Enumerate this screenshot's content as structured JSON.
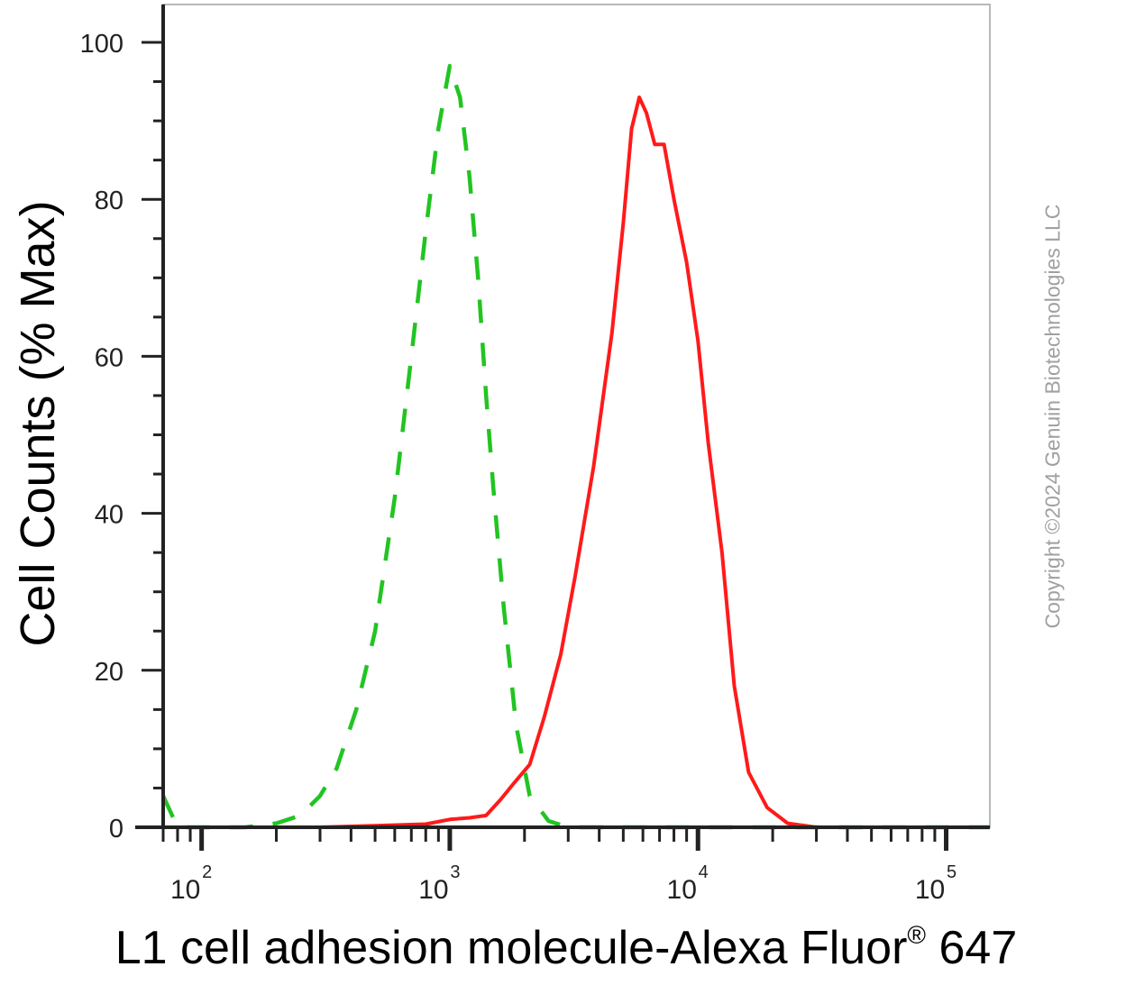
{
  "chart_data": {
    "type": "line",
    "title": "",
    "xlabel_main": "L1 cell adhesion molecule-Alexa Fluor",
    "xlabel_sup": "®",
    "xlabel_tail": " 647",
    "ylabel": "Cell Counts (% Max)",
    "x_scale": "log",
    "xlim": [
      70,
      150000
    ],
    "ylim": [
      0,
      100
    ],
    "y_ticks": [
      0,
      20,
      40,
      60,
      80,
      100
    ],
    "y_tick_labels": [
      "0",
      "20",
      "40",
      "60",
      "80",
      "100"
    ],
    "x_ticks": [
      100,
      1000,
      10000,
      100000
    ],
    "x_tick_bases": [
      "10",
      "10",
      "10",
      "10"
    ],
    "x_tick_exps": [
      "2",
      "3",
      "4",
      "5"
    ],
    "grid": false,
    "legend": "none",
    "series": [
      {
        "color": "#ff1a1a",
        "style": "solid",
        "points": [
          [
            70,
            0
          ],
          [
            300,
            0
          ],
          [
            500,
            0.2
          ],
          [
            800,
            0.4
          ],
          [
            1000,
            1
          ],
          [
            1200,
            1.2
          ],
          [
            1400,
            1.5
          ],
          [
            1600,
            3.5
          ],
          [
            1800,
            5.5
          ],
          [
            2100,
            8
          ],
          [
            2400,
            14
          ],
          [
            2800,
            22
          ],
          [
            3200,
            32
          ],
          [
            3800,
            46
          ],
          [
            4500,
            63
          ],
          [
            5000,
            77
          ],
          [
            5400,
            89
          ],
          [
            5800,
            93
          ],
          [
            6200,
            91
          ],
          [
            6700,
            87
          ],
          [
            7300,
            87
          ],
          [
            8000,
            80
          ],
          [
            9000,
            72
          ],
          [
            10000,
            62
          ],
          [
            11000,
            49
          ],
          [
            12500,
            35
          ],
          [
            14000,
            18
          ],
          [
            16000,
            7
          ],
          [
            19000,
            2.5
          ],
          [
            23000,
            0.5
          ],
          [
            30000,
            0
          ],
          [
            150000,
            0
          ]
        ]
      },
      {
        "color": "#22c422",
        "style": "dashed",
        "points": [
          [
            70,
            4
          ],
          [
            80,
            0
          ],
          [
            150,
            0
          ],
          [
            200,
            0.5
          ],
          [
            250,
            1.5
          ],
          [
            300,
            4
          ],
          [
            350,
            7.5
          ],
          [
            420,
            15
          ],
          [
            500,
            25
          ],
          [
            600,
            42
          ],
          [
            700,
            60
          ],
          [
            800,
            76
          ],
          [
            900,
            89
          ],
          [
            1000,
            97
          ],
          [
            1100,
            93
          ],
          [
            1200,
            83
          ],
          [
            1300,
            70
          ],
          [
            1400,
            55
          ],
          [
            1500,
            43
          ],
          [
            1650,
            28
          ],
          [
            1850,
            13
          ],
          [
            2100,
            4
          ],
          [
            2500,
            0.8
          ],
          [
            3000,
            0
          ],
          [
            150000,
            0
          ]
        ]
      }
    ]
  },
  "watermark": "Copyright ©2024 Genuin Biotechnologies LLC"
}
